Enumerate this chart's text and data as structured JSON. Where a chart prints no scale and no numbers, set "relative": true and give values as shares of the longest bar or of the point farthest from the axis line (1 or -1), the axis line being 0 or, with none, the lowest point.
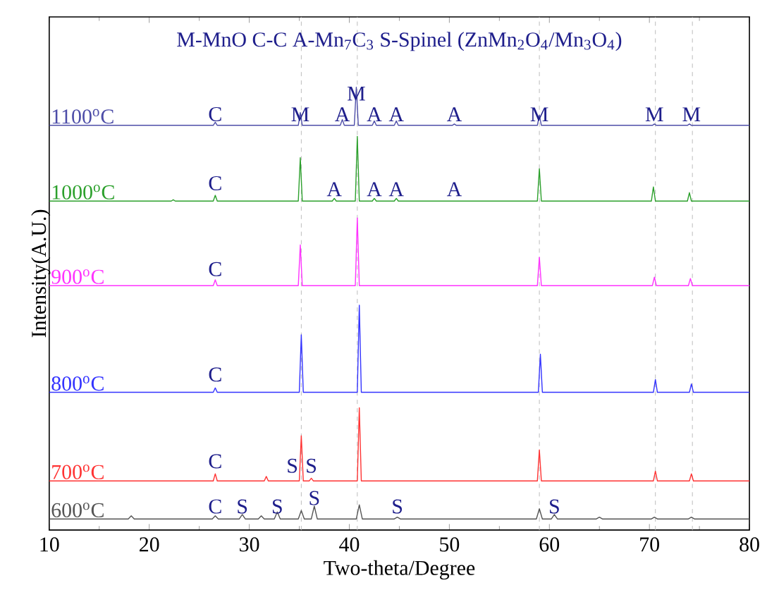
{
  "chart_data": {
    "type": "line",
    "relative": true,
    "title": "M-MnO  C-C  A-Mn$_{7}$C$_{3}$  S-Spinel (ZnMn$_{2}$O$_{4}$/Mn$_{3}$O$_{4}$)",
    "xlabel": "Two-theta/Degree",
    "ylabel": "Intensity(A.U.)",
    "xlim": [
      10,
      80
    ],
    "xticks": [
      10,
      20,
      30,
      40,
      50,
      60,
      70,
      80
    ],
    "line_style": "solid",
    "series": [
      {
        "name": "1100$^{o}$C",
        "color": "#4d4da8",
        "x": [
          10,
          26.4,
          26.6,
          26.8,
          34.9,
          35.1,
          35.3,
          39.1,
          39.3,
          39.5,
          40.5,
          40.7,
          40.9,
          42.3,
          42.5,
          42.7,
          44.5,
          44.7,
          44.9,
          50.3,
          50.5,
          50.7,
          58.8,
          59.0,
          59.2,
          70.3,
          70.5,
          70.7,
          73.8,
          74.0,
          74.2,
          80
        ],
        "values": [
          0.914,
          0.914,
          0.921,
          0.914,
          0.914,
          0.943,
          0.914,
          0.914,
          0.927,
          0.914,
          0.914,
          1.0,
          0.914,
          0.914,
          0.924,
          0.914,
          0.914,
          0.924,
          0.914,
          0.914,
          0.917,
          0.914,
          0.914,
          0.937,
          0.914,
          0.914,
          0.917,
          0.914,
          0.914,
          0.917,
          0.914,
          0.914
        ]
      },
      {
        "name": "1000$^{o}$C",
        "color": "#2ca02c",
        "x": [
          10,
          22.2,
          22.4,
          22.6,
          26.4,
          26.6,
          26.8,
          34.9,
          35.1,
          35.3,
          38.3,
          38.5,
          38.7,
          40.6,
          40.8,
          41.0,
          42.3,
          42.5,
          42.7,
          44.5,
          44.7,
          44.9,
          58.8,
          59.0,
          59.2,
          70.2,
          70.4,
          70.6,
          73.8,
          74.0,
          74.2,
          80
        ],
        "values": [
          0.743,
          0.743,
          0.746,
          0.743,
          0.743,
          0.756,
          0.743,
          0.743,
          0.841,
          0.743,
          0.743,
          0.749,
          0.743,
          0.743,
          0.889,
          0.743,
          0.743,
          0.749,
          0.743,
          0.743,
          0.749,
          0.743,
          0.743,
          0.816,
          0.743,
          0.743,
          0.775,
          0.743,
          0.743,
          0.762,
          0.743,
          0.743
        ]
      },
      {
        "name": "900$^{o}$C",
        "color": "#ff33ff",
        "x": [
          10,
          26.4,
          26.6,
          26.8,
          34.9,
          35.1,
          35.3,
          40.6,
          40.8,
          41.0,
          58.8,
          59.0,
          59.2,
          70.3,
          70.5,
          70.7,
          73.9,
          74.1,
          74.3,
          80
        ],
        "values": [
          0.552,
          0.552,
          0.565,
          0.552,
          0.552,
          0.644,
          0.552,
          0.552,
          0.705,
          0.552,
          0.552,
          0.616,
          0.552,
          0.552,
          0.571,
          0.552,
          0.552,
          0.568,
          0.552,
          0.552
        ]
      },
      {
        "name": "800$^{o}$C",
        "color": "#3333ff",
        "x": [
          10,
          26.4,
          26.6,
          26.8,
          35.0,
          35.2,
          35.4,
          40.8,
          41.0,
          41.2,
          58.9,
          59.1,
          59.3,
          70.4,
          70.6,
          70.8,
          74.0,
          74.2,
          74.4,
          80
        ],
        "values": [
          0.311,
          0.311,
          0.321,
          0.311,
          0.311,
          0.441,
          0.311,
          0.311,
          0.508,
          0.311,
          0.311,
          0.397,
          0.311,
          0.311,
          0.34,
          0.311,
          0.311,
          0.33,
          0.311,
          0.311
        ]
      },
      {
        "name": "700$^{o}$C",
        "color": "#ff3333",
        "x": [
          10,
          26.4,
          26.6,
          26.8,
          31.5,
          31.7,
          31.9,
          35.0,
          35.2,
          35.4,
          36.0,
          36.2,
          36.4,
          40.8,
          41.0,
          41.2,
          58.8,
          59.0,
          59.2,
          70.4,
          70.6,
          70.8,
          74.0,
          74.2,
          74.4,
          80
        ],
        "values": [
          0.111,
          0.111,
          0.127,
          0.111,
          0.111,
          0.121,
          0.111,
          0.111,
          0.213,
          0.111,
          0.111,
          0.117,
          0.111,
          0.111,
          0.276,
          0.111,
          0.111,
          0.181,
          0.111,
          0.111,
          0.133,
          0.111,
          0.111,
          0.127,
          0.111,
          0.111
        ]
      },
      {
        "name": "600$^{o}$C",
        "color": "#555555",
        "x": [
          10,
          17.9,
          18.2,
          18.5,
          26.3,
          26.6,
          26.9,
          29.0,
          29.3,
          29.6,
          30.9,
          31.2,
          31.5,
          32.5,
          32.8,
          33.1,
          34.9,
          35.2,
          35.5,
          36.2,
          36.5,
          36.8,
          40.7,
          41.0,
          41.3,
          44.5,
          44.8,
          45.1,
          58.7,
          59.0,
          59.3,
          60.2,
          60.5,
          60.8,
          64.7,
          65.0,
          65.3,
          70.2,
          70.5,
          70.8,
          73.9,
          74.2,
          74.5,
          80
        ],
        "values": [
          0.025,
          0.025,
          0.032,
          0.025,
          0.025,
          0.032,
          0.025,
          0.025,
          0.035,
          0.025,
          0.025,
          0.032,
          0.025,
          0.025,
          0.041,
          0.025,
          0.025,
          0.044,
          0.025,
          0.025,
          0.054,
          0.025,
          0.025,
          0.057,
          0.025,
          0.025,
          0.029,
          0.025,
          0.025,
          0.048,
          0.025,
          0.025,
          0.035,
          0.025,
          0.025,
          0.029,
          0.025,
          0.025,
          0.029,
          0.025,
          0.025,
          0.029,
          0.025,
          0.025
        ]
      }
    ],
    "ref_lines": [
      {
        "axis": "x",
        "value": 35.2,
        "color": "#bbbbbb",
        "line_style": "dashed"
      },
      {
        "axis": "x",
        "value": 40.8,
        "color": "#bbbbbb",
        "line_style": "dashed"
      },
      {
        "axis": "x",
        "value": 59.0,
        "color": "#bbbbbb",
        "line_style": "dashed"
      },
      {
        "axis": "x",
        "value": 70.6,
        "color": "#bbbbbb",
        "line_style": "dashed"
      },
      {
        "axis": "x",
        "value": 74.3,
        "color": "#bbbbbb",
        "line_style": "dashed"
      }
    ],
    "annotations": [
      {
        "text": "C",
        "x": 26.6,
        "y": 0.921
      },
      {
        "text": "M",
        "x": 35.1,
        "y": 0.921
      },
      {
        "text": "A",
        "x": 39.3,
        "y": 0.921
      },
      {
        "text": "M",
        "x": 40.7,
        "y": 0.968
      },
      {
        "text": "A",
        "x": 42.5,
        "y": 0.921
      },
      {
        "text": "A",
        "x": 44.7,
        "y": 0.921
      },
      {
        "text": "A",
        "x": 50.5,
        "y": 0.921
      },
      {
        "text": "M",
        "x": 59.0,
        "y": 0.921
      },
      {
        "text": "M",
        "x": 70.5,
        "y": 0.921
      },
      {
        "text": "M",
        "x": 74.2,
        "y": 0.921
      },
      {
        "text": "C",
        "x": 26.6,
        "y": 0.765
      },
      {
        "text": "A",
        "x": 38.5,
        "y": 0.752
      },
      {
        "text": "A",
        "x": 42.5,
        "y": 0.752
      },
      {
        "text": "A",
        "x": 44.7,
        "y": 0.752
      },
      {
        "text": "A",
        "x": 50.5,
        "y": 0.752
      },
      {
        "text": "C",
        "x": 26.6,
        "y": 0.571
      },
      {
        "text": "C",
        "x": 26.6,
        "y": 0.333
      },
      {
        "text": "C",
        "x": 26.6,
        "y": 0.137
      },
      {
        "text": "S",
        "x": 34.3,
        "y": 0.127
      },
      {
        "text": "S",
        "x": 36.2,
        "y": 0.127
      },
      {
        "text": "C",
        "x": 26.6,
        "y": 0.035
      },
      {
        "text": "S",
        "x": 29.3,
        "y": 0.035
      },
      {
        "text": "S",
        "x": 32.8,
        "y": 0.035
      },
      {
        "text": "S",
        "x": 36.5,
        "y": 0.054
      },
      {
        "text": "S",
        "x": 44.8,
        "y": 0.035
      },
      {
        "text": "S",
        "x": 60.5,
        "y": 0.035
      }
    ]
  }
}
